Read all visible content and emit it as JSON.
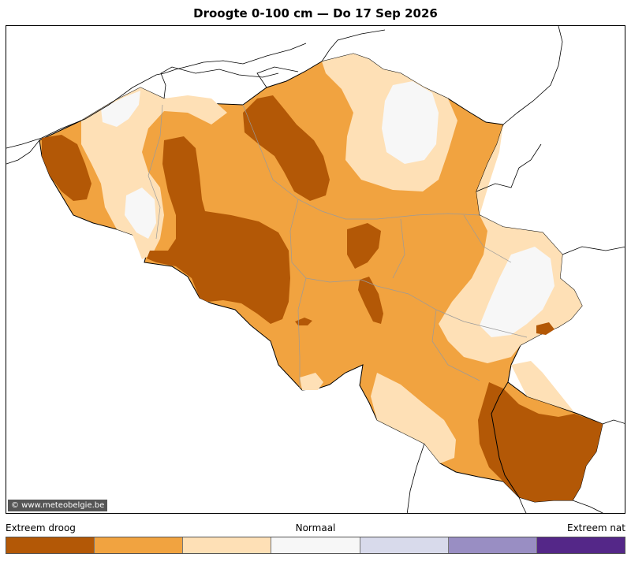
{
  "header": {
    "title": "Droogte 0-100 cm  —  Do 17 Sep 2026"
  },
  "map": {
    "credit": "© www.meteobelgie.be",
    "class_colors": {
      "extreme_dry": "#b35806",
      "dry": "#f1a340",
      "slightly_dry": "#fee0b6",
      "normal": "#f7f7f7",
      "slightly_wet": "#d8daeb",
      "wet": "#998ec3",
      "extreme_wet": "#542788"
    }
  },
  "legend": {
    "label_left": "Extreem droog",
    "label_mid": "Normaal",
    "label_right": "Extreem nat",
    "swatches": [
      "#b35806",
      "#f1a340",
      "#fee0b6",
      "#f7f7f7",
      "#d8daeb",
      "#998ec3",
      "#542788"
    ]
  }
}
